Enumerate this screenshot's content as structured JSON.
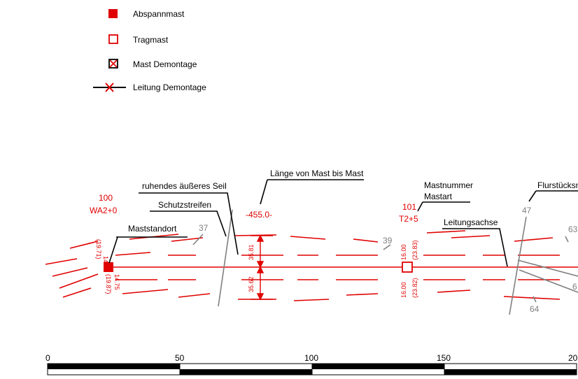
{
  "legend": {
    "items": [
      {
        "label": "Abspannmast",
        "symbol": "filled-square-icon"
      },
      {
        "label": "Tragmast",
        "symbol": "open-square-icon"
      },
      {
        "label": "Mast Demontage",
        "symbol": "crossed-square-icon"
      },
      {
        "label": "Leitung Demontage",
        "symbol": "line-cross-icon"
      }
    ]
  },
  "callouts": {
    "maststandort": "Maststandort",
    "schutzstreifen": "Schutzstreifen",
    "ruhendes_seil": "ruhendes äußeres Seil",
    "laenge": "Länge von Mast bis Mast",
    "mastnummer": "Mastnummer",
    "mastart": "Mastart",
    "leitungsachse": "Leitungsachse",
    "flurstueck": "Flurstücksn"
  },
  "mast1": {
    "number": "100",
    "type": "WA2+0",
    "dim_top_a": "14.71",
    "dim_top_b": "(19.71)",
    "dim_bot_a": "14.75",
    "dim_bot_b": "(19.87)"
  },
  "mast2": {
    "number": "101",
    "type": "T2+5",
    "dim_top_a": "16.00",
    "dim_top_b": "(23.83)",
    "dim_bot_a": "16.00",
    "dim_bot_b": "(23.82)"
  },
  "span_length": "-455.0-",
  "corridor": {
    "upper": "35.81",
    "lower": "35.62"
  },
  "parcels": [
    "37",
    "39",
    "47",
    "63",
    "64",
    "6"
  ],
  "scale": {
    "ticks": [
      "0",
      "50",
      "100",
      "150",
      "20"
    ]
  },
  "colors": {
    "accent": "#e00000",
    "parcel": "#808080",
    "line": "#000000"
  }
}
